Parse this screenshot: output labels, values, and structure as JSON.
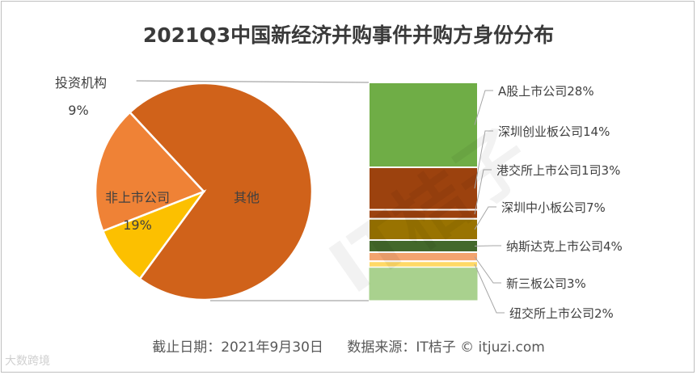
{
  "title": "2021Q3中国新经济并购事件并购方身份分布",
  "footer": {
    "date": "截止日期：2021年9月30日",
    "source": "数据来源：IT桔子 © itjuzi.com"
  },
  "watermark": {
    "corner": "大数跨境",
    "center": "IT桔子"
  },
  "chart_data": {
    "type": "bar-of-pie",
    "pie": {
      "slices": [
        {
          "label": "其他",
          "value": 72,
          "value_label": "",
          "color": "#d0621a"
        },
        {
          "label": "投资机构",
          "value": 9,
          "value_label": "9%",
          "color": "#fcc000"
        },
        {
          "label": "非上市公司",
          "value": 19,
          "value_label": "19%",
          "color": "#ef8236"
        }
      ]
    },
    "bar": {
      "segments": [
        {
          "label": "A股上市公司28%",
          "value": 28,
          "color": "#6fad46"
        },
        {
          "label": "深圳创业板公司14%",
          "value": 14,
          "color": "#9c420e"
        },
        {
          "label": "港交所上市公司1司3%",
          "value": 3,
          "color": "#9c420e"
        },
        {
          "label": "深圳中小板公司7%",
          "value": 7,
          "color": "#997301"
        },
        {
          "label": "纳斯达克上市公司4%",
          "value": 4,
          "color": "#43682b"
        },
        {
          "label": "新三板公司3%",
          "value": 3,
          "color": "#f3a46f"
        },
        {
          "label": "纽交所上市公司2%",
          "value": 2,
          "color": "#ffd966"
        }
      ],
      "trailing_segment_color": "#a9d18e"
    }
  }
}
